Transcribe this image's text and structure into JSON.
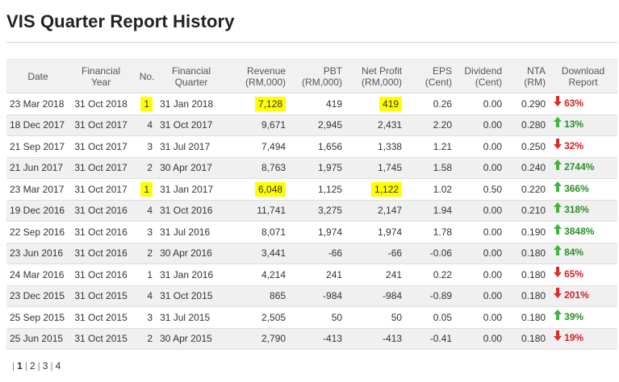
{
  "page_title": "VIS Quarter Report History",
  "columns": {
    "date": "Date",
    "financial_year": [
      "Financial",
      "Year"
    ],
    "no": "No.",
    "financial_quarter": [
      "Financial",
      "Quarter"
    ],
    "revenue": [
      "Revenue",
      "(RM,000)"
    ],
    "pbt": [
      "PBT",
      "(RM,000)"
    ],
    "net_profit": [
      "Net Profit",
      "(RM,000)"
    ],
    "eps": [
      "EPS",
      "(Cent)"
    ],
    "dividend": [
      "Dividend",
      "(Cent)"
    ],
    "nta": [
      "NTA",
      "(RM)"
    ],
    "download_report": [
      "Download",
      "Report"
    ]
  },
  "rows": [
    {
      "date": "23 Mar 2018",
      "fy": "31 Oct 2018",
      "no": "1",
      "fq": "31 Jan 2018",
      "revenue": "7,128",
      "pbt": "419",
      "np": "419",
      "eps": "0.26",
      "div": "0.00",
      "nta": "0.290",
      "dir": "down",
      "pct": "63%",
      "hl_no": true,
      "hl_rev": true,
      "hl_np": true
    },
    {
      "date": "18 Dec 2017",
      "fy": "31 Oct 2017",
      "no": "4",
      "fq": "31 Oct 2017",
      "revenue": "9,671",
      "pbt": "2,945",
      "np": "2,431",
      "eps": "2.20",
      "div": "0.00",
      "nta": "0.280",
      "dir": "up",
      "pct": "13%"
    },
    {
      "date": "21 Sep 2017",
      "fy": "31 Oct 2017",
      "no": "3",
      "fq": "31 Jul 2017",
      "revenue": "7,494",
      "pbt": "1,656",
      "np": "1,338",
      "eps": "1.21",
      "div": "0.00",
      "nta": "0.250",
      "dir": "down",
      "pct": "32%"
    },
    {
      "date": "21 Jun 2017",
      "fy": "31 Oct 2017",
      "no": "2",
      "fq": "30 Apr 2017",
      "revenue": "8,763",
      "pbt": "1,975",
      "np": "1,745",
      "eps": "1.58",
      "div": "0.00",
      "nta": "0.240",
      "dir": "up",
      "pct": "2744%"
    },
    {
      "date": "23 Mar 2017",
      "fy": "31 Oct 2017",
      "no": "1",
      "fq": "31 Jan 2017",
      "revenue": "6,048",
      "pbt": "1,125",
      "np": "1,122",
      "eps": "1.02",
      "div": "0.50",
      "nta": "0.220",
      "dir": "up",
      "pct": "366%",
      "hl_no": true,
      "hl_rev": true,
      "hl_np": true
    },
    {
      "date": "19 Dec 2016",
      "fy": "31 Oct 2016",
      "no": "4",
      "fq": "31 Oct 2016",
      "revenue": "11,741",
      "pbt": "3,275",
      "np": "2,147",
      "eps": "1.94",
      "div": "0.00",
      "nta": "0.210",
      "dir": "up",
      "pct": "318%"
    },
    {
      "date": "22 Sep 2016",
      "fy": "31 Oct 2016",
      "no": "3",
      "fq": "31 Jul 2016",
      "revenue": "8,071",
      "pbt": "1,974",
      "np": "1,974",
      "eps": "1.78",
      "div": "0.00",
      "nta": "0.190",
      "dir": "up",
      "pct": "3848%"
    },
    {
      "date": "23 Jun 2016",
      "fy": "31 Oct 2016",
      "no": "2",
      "fq": "30 Apr 2016",
      "revenue": "3,441",
      "pbt": "-66",
      "np": "-66",
      "eps": "-0.06",
      "div": "0.00",
      "nta": "0.180",
      "dir": "up",
      "pct": "84%"
    },
    {
      "date": "24 Mar 2016",
      "fy": "31 Oct 2016",
      "no": "1",
      "fq": "31 Jan 2016",
      "revenue": "4,214",
      "pbt": "241",
      "np": "241",
      "eps": "0.22",
      "div": "0.00",
      "nta": "0.180",
      "dir": "down",
      "pct": "65%"
    },
    {
      "date": "23 Dec 2015",
      "fy": "31 Oct 2015",
      "no": "4",
      "fq": "31 Oct 2015",
      "revenue": "865",
      "pbt": "-984",
      "np": "-984",
      "eps": "-0.89",
      "div": "0.00",
      "nta": "0.180",
      "dir": "down",
      "pct": "201%"
    },
    {
      "date": "25 Sep 2015",
      "fy": "31 Oct 2015",
      "no": "3",
      "fq": "31 Jul 2015",
      "revenue": "2,505",
      "pbt": "50",
      "np": "50",
      "eps": "0.05",
      "div": "0.00",
      "nta": "0.180",
      "dir": "up",
      "pct": "39%"
    },
    {
      "date": "25 Jun 2015",
      "fy": "31 Oct 2015",
      "no": "2",
      "fq": "30 Apr 2015",
      "revenue": "2,790",
      "pbt": "-413",
      "np": "-413",
      "eps": "-0.41",
      "div": "0.00",
      "nta": "0.180",
      "dir": "down",
      "pct": "19%"
    }
  ],
  "pagination": {
    "pages": [
      "1",
      "2",
      "3",
      "4"
    ],
    "current": "1"
  },
  "colors": {
    "highlight": "#ffff00",
    "up": "#2a8f2a",
    "down": "#d42020"
  }
}
